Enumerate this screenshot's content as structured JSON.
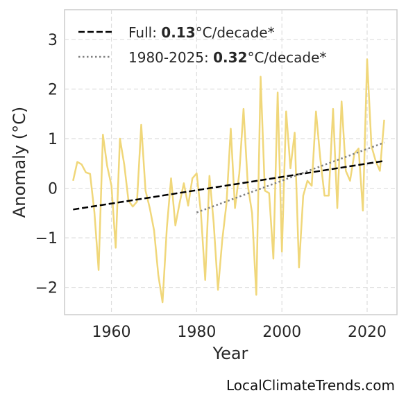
{
  "chart_data": {
    "type": "line",
    "xlabel": "Year",
    "ylabel": "Anomaly (°C)",
    "xlim": [
      1949,
      2027
    ],
    "ylim": [
      -2.55,
      3.6
    ],
    "x_ticks": [
      1960,
      1980,
      2000,
      2020
    ],
    "y_ticks": [
      3,
      2,
      1,
      0,
      -1,
      -2
    ],
    "y_tick_labels": [
      "3",
      "2",
      "1",
      "0",
      "−1",
      "−2"
    ],
    "grid": true,
    "legend_position": "top-left",
    "series": [
      {
        "kind": "data",
        "color": "#f0d77a",
        "x": [
          1951,
          1952,
          1953,
          1954,
          1955,
          1956,
          1957,
          1958,
          1959,
          1960,
          1961,
          1962,
          1963,
          1964,
          1965,
          1966,
          1967,
          1968,
          1969,
          1970,
          1971,
          1972,
          1973,
          1974,
          1975,
          1976,
          1977,
          1978,
          1979,
          1980,
          1981,
          1982,
          1983,
          1984,
          1985,
          1986,
          1987,
          1988,
          1989,
          1990,
          1991,
          1992,
          1993,
          1994,
          1995,
          1996,
          1997,
          1998,
          1999,
          2000,
          2001,
          2002,
          2003,
          2004,
          2005,
          2006,
          2007,
          2008,
          2009,
          2010,
          2011,
          2012,
          2013,
          2014,
          2015,
          2016,
          2017,
          2018,
          2019,
          2020,
          2021,
          2022,
          2023,
          2024
        ],
        "values": [
          0.15,
          0.53,
          0.48,
          0.32,
          0.29,
          -0.48,
          -1.65,
          1.08,
          0.45,
          0.05,
          -1.2,
          1.0,
          0.48,
          -0.25,
          -0.37,
          -0.27,
          1.28,
          -0.05,
          -0.4,
          -0.85,
          -1.75,
          -2.3,
          -0.8,
          0.2,
          -0.75,
          -0.3,
          0.1,
          -0.35,
          0.2,
          0.3,
          -0.5,
          -1.85,
          0.25,
          -0.7,
          -2.05,
          -1.05,
          -0.3,
          1.2,
          -0.4,
          0.3,
          1.6,
          0.05,
          -0.5,
          -2.15,
          2.25,
          -0.05,
          -0.1,
          -1.42,
          1.93,
          -1.28,
          1.55,
          0.4,
          1.12,
          -1.6,
          -0.15,
          0.15,
          0.05,
          1.55,
          0.6,
          -0.15,
          -0.15,
          1.6,
          -0.4,
          1.75,
          0.35,
          0.15,
          0.7,
          0.8,
          -0.45,
          2.6,
          0.85,
          0.55,
          0.35,
          1.38
        ]
      },
      {
        "kind": "trend",
        "style": "dashed",
        "color": "#000000",
        "x": [
          1951,
          2024
        ],
        "values": [
          -0.43,
          0.55
        ],
        "legend_prefix": "Full: ",
        "legend_value": "0.13",
        "legend_suffix": "°C/decade*"
      },
      {
        "kind": "trend",
        "style": "dotted",
        "color": "#808080",
        "x": [
          1980,
          2024
        ],
        "values": [
          -0.49,
          0.92
        ],
        "legend_prefix": "1980-2025: ",
        "legend_value": "0.32",
        "legend_suffix": "°C/decade*"
      }
    ]
  },
  "credit": "LocalClimateTrends.com"
}
